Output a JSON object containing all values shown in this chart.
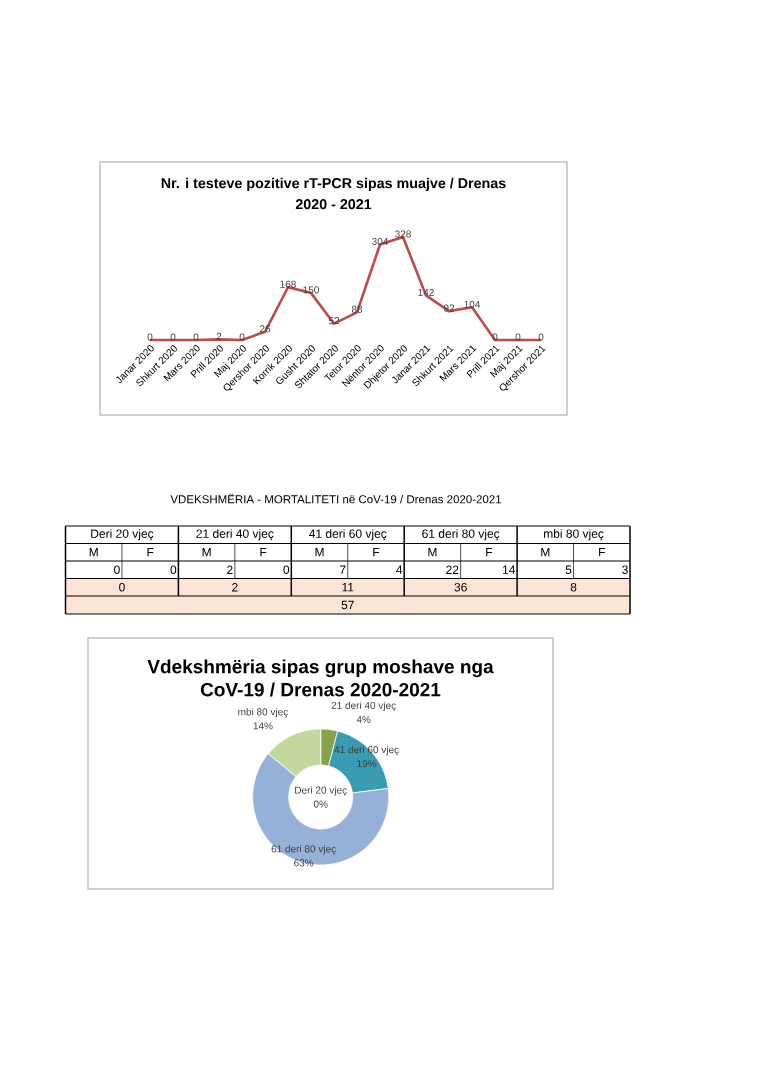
{
  "chart_data": [
    {
      "type": "line",
      "title": "Nr. i testeve pozitive rT-PCR sipas muajve / Drenas 2020 - 2021",
      "categories": [
        "Janar 2020",
        "Shkurt 2020",
        "Mars 2020",
        "Prill 2020",
        "Maj 2020",
        "Qershor 2020",
        "Korrik 2020",
        "Gusht 2020",
        "Shtator 2020",
        "Tetor 2020",
        "Nëntor 2020",
        "Dhjetor 2020",
        "Janar 2021",
        "Shkurt 2021",
        "Mars 2021",
        "Prill 2021",
        "Maj 2021",
        "Qershor 2021"
      ],
      "values": [
        0,
        0,
        0,
        2,
        0,
        26,
        168,
        150,
        52,
        88,
        304,
        328,
        142,
        92,
        104,
        0,
        0,
        0
      ],
      "color": "#be4b48",
      "data_labels": true,
      "marker": "none",
      "tick_labels": "x"
    },
    {
      "type": "other",
      "title": "VDEKSHMËRIA - MORTALITETI në CoV-19 / Drenas 2020-2021",
      "annotations": [
        "Deri 20 vjeç",
        "21 deri 40 vjeç",
        "41 deri 60 vjeç",
        "61 deri 80 vjeç",
        "mbi 80 vjeç",
        "M",
        "F",
        "M",
        "F",
        "M",
        "F",
        "M",
        "F",
        "M",
        "F",
        "0",
        "0",
        "2",
        "0",
        "7",
        "4",
        "22",
        "14",
        "5",
        "3",
        "0",
        "2",
        "11",
        "36",
        "8",
        "57"
      ]
    },
    {
      "type": "donut",
      "title": "Vdekshmëria sipas grup moshave nga CoV-19 / Drenas 2020-2021",
      "categories": [
        "Deri 20 vjeç",
        "21 deri 40 vjeç",
        "41 deri 60 vjeç",
        "61 deri 80 vjeç",
        "mbi 80 vjeç"
      ],
      "values": [
        0,
        4,
        19,
        63,
        14
      ],
      "colors": [
        "#4f81bd",
        "#86a34a",
        "#3a9cb3",
        "#95b1d8",
        "#c4d79e"
      ],
      "value_labels": [
        "0%",
        "4%",
        "19%",
        "63%",
        "14%"
      ]
    }
  ]
}
